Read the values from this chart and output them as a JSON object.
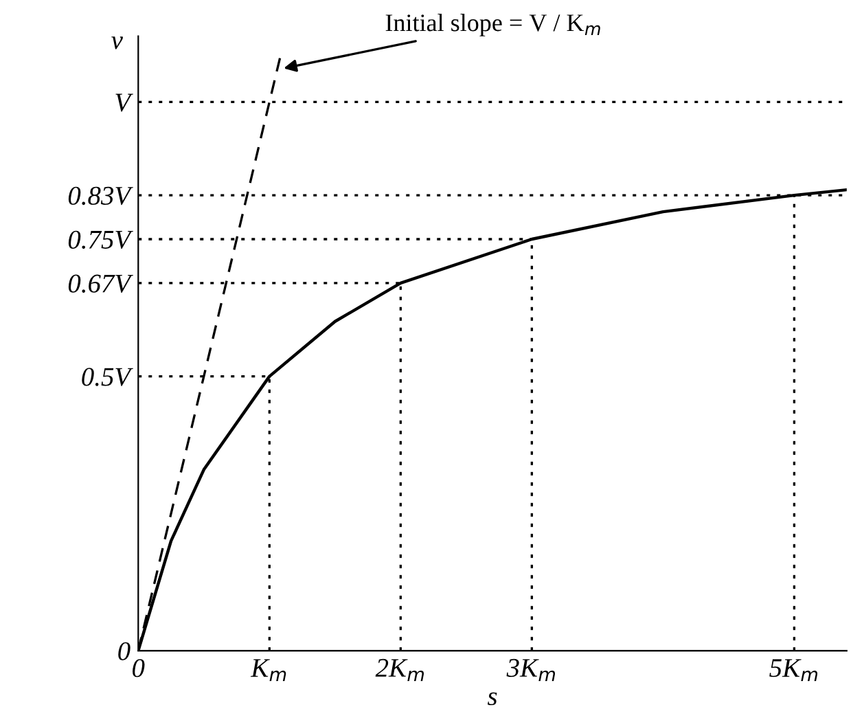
{
  "chart_data": {
    "type": "line",
    "xlabel": "s",
    "ylabel": "v",
    "annotations": [
      {
        "text": "Initial slope = V / K$_{m}$",
        "x": 1.08,
        "y": 1.06
      }
    ],
    "series": [
      {
        "color": "#000000",
        "x": [
          0,
          0.25,
          0.5,
          1,
          1.5,
          2,
          3,
          4,
          5,
          5.4
        ],
        "values": [
          0,
          0.2,
          0.33,
          0.5,
          0.6,
          0.67,
          0.75,
          0.8,
          0.83,
          0.84
        ],
        "line_style": "solid"
      },
      {
        "color": "#000000",
        "x": [
          0,
          1.08
        ],
        "values": [
          0,
          1.08
        ],
        "line_style": "dashed"
      },
      {
        "color": "#000000",
        "x": [
          0,
          5.4
        ],
        "values": [
          1,
          1
        ],
        "line_style": "dotted"
      },
      {
        "color": "#000000",
        "x": [
          0,
          5.4
        ],
        "values": [
          0.83,
          0.83
        ],
        "line_style": "dotted"
      },
      {
        "color": "#000000",
        "x": [
          0,
          3
        ],
        "values": [
          0.75,
          0.75
        ],
        "line_style": "dotted"
      },
      {
        "color": "#000000",
        "x": [
          0,
          2
        ],
        "values": [
          0.67,
          0.67
        ],
        "line_style": "dotted"
      },
      {
        "color": "#000000",
        "x": [
          0,
          1
        ],
        "values": [
          0.5,
          0.5
        ],
        "line_style": "dotted"
      },
      {
        "color": "#000000",
        "x": [
          1,
          1
        ],
        "values": [
          0,
          0.5
        ],
        "line_style": "dotted"
      },
      {
        "color": "#000000",
        "x": [
          2,
          2
        ],
        "values": [
          0,
          0.67
        ],
        "line_style": "dotted"
      },
      {
        "color": "#000000",
        "x": [
          3,
          3
        ],
        "values": [
          0,
          0.75
        ],
        "line_style": "dotted"
      },
      {
        "color": "#000000",
        "x": [
          5,
          5
        ],
        "values": [
          0,
          0.83
        ],
        "line_style": "dotted"
      }
    ],
    "xlim": [
      0,
      5.4
    ],
    "ylim": [
      0,
      1.12
    ],
    "xticks": [
      0,
      {
        "value": 1,
        "label": "K$_{m}$"
      },
      {
        "value": 2,
        "label": "2K$_{m}$"
      },
      {
        "value": 3,
        "label": "3K$_{m}$"
      },
      {
        "value": 5,
        "label": "5K$_{m}$"
      }
    ],
    "yticks": [
      0,
      {
        "value": 0.5,
        "label": "0.5V"
      },
      {
        "value": 0.67,
        "label": "0.67V"
      },
      {
        "value": 0.75,
        "label": "0.75V"
      },
      {
        "value": 0.83,
        "label": "0.83V"
      },
      {
        "value": 1,
        "label": "V"
      }
    ],
    "grid": false,
    "legend": false,
    "marker": "none"
  }
}
